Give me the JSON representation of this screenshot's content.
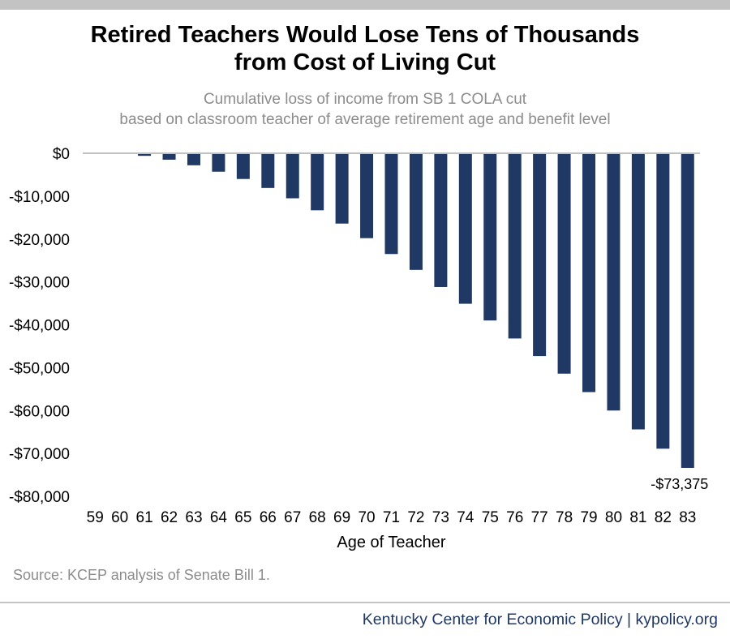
{
  "header": {
    "title_line1": "Retired Teachers Would Lose Tens of Thousands",
    "title_line2": "from Cost of Living Cut",
    "subtitle_line1": "Cumulative loss of income from SB 1 COLA cut",
    "subtitle_line2": "based on classroom teacher of average retirement age and benefit level"
  },
  "chart_data": {
    "type": "bar",
    "title": "Retired Teachers Would Lose Tens of Thousands from Cost of Living Cut",
    "subtitle": "Cumulative loss of income from SB 1 COLA cut based on classroom teacher of average retirement age and benefit level",
    "xlabel": "Age of Teacher",
    "ylabel": "",
    "categories": [
      "59",
      "60",
      "61",
      "62",
      "63",
      "64",
      "65",
      "66",
      "67",
      "68",
      "69",
      "70",
      "71",
      "72",
      "73",
      "74",
      "75",
      "76",
      "77",
      "78",
      "79",
      "80",
      "81",
      "82",
      "83"
    ],
    "values": [
      0,
      0,
      -600,
      -1500,
      -2800,
      -4300,
      -6000,
      -8100,
      -10500,
      -13300,
      -16400,
      -19800,
      -23500,
      -27200,
      -31200,
      -35100,
      -39000,
      -43200,
      -47300,
      -51400,
      -55700,
      -60000,
      -64400,
      -68900,
      -73375
    ],
    "ylim": [
      -80000,
      0
    ],
    "yticks": [
      0,
      -10000,
      -20000,
      -30000,
      -40000,
      -50000,
      -60000,
      -70000,
      -80000
    ],
    "ytick_labels": [
      "$0",
      "-$10,000",
      "-$20,000",
      "-$30,000",
      "-$40,000",
      "-$50,000",
      "-$60,000",
      "-$70,000",
      "-$80,000"
    ],
    "annotation": {
      "category": "83",
      "text": "-$73,375"
    },
    "bar_color": "#1f3864",
    "grid": false,
    "legend": "none"
  },
  "footer": {
    "source": "Source: KCEP analysis of Senate Bill 1.",
    "credit": "Kentucky Center for Economic Policy | kypolicy.org"
  }
}
